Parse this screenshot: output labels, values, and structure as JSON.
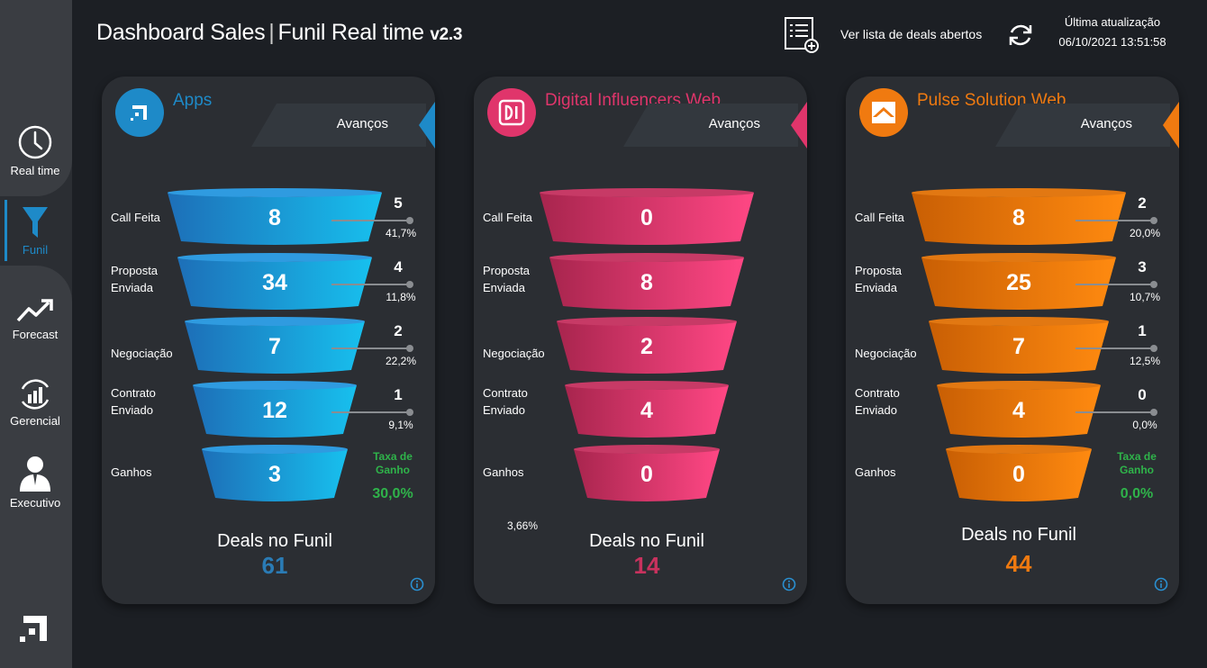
{
  "header": {
    "title_main": "Dashboard Sales",
    "title_sep": "|",
    "title_sub": "Funil Real time",
    "version": "v2.3",
    "list_link": "Ver lista de deals abertos",
    "last_update_label": "Última atualização",
    "last_update_value": "06/10/2021 13:51:58"
  },
  "sidebar": {
    "items": [
      {
        "label": "Real time",
        "icon": "clock-icon"
      },
      {
        "label": "Funil",
        "icon": "funnel-icon",
        "active": true
      },
      {
        "label": "Forecast",
        "icon": "trend-up-icon"
      },
      {
        "label": "Gerencial",
        "icon": "bar-chart-cycle-icon"
      },
      {
        "label": "Executivo",
        "icon": "person-icon"
      }
    ]
  },
  "stage_labels": {
    "call": "Call Feita",
    "proposta_1": "Proposta",
    "proposta_2": "Enviada",
    "negociacao": "Negociação",
    "contrato_1": "Contrato",
    "contrato_2": "Enviado",
    "ganhos": "Ganhos"
  },
  "card_common": {
    "avancos": "Avanços",
    "taxa_1": "Taxa de",
    "taxa_2": "Ganho",
    "deals_label": "Deals no Funil"
  },
  "cards": [
    {
      "name": "Apps",
      "accent": "#1e8ac8",
      "values": [
        "8",
        "34",
        "7",
        "12",
        "3"
      ],
      "advances": [
        "5",
        "4",
        "2",
        "1"
      ],
      "advance_pct": [
        "41,7%",
        "11,8%",
        "22,2%",
        "9,1%"
      ],
      "taxa_ganho": "30,0%",
      "deals": "61"
    },
    {
      "name": "Digital Influencers Web",
      "accent": "#e0356b",
      "values": [
        "0",
        "8",
        "2",
        "4",
        "0"
      ],
      "extra_pct": "3,66%",
      "deals": "14"
    },
    {
      "name": "Pulse Solution Web",
      "accent": "#f07a10",
      "values": [
        "8",
        "25",
        "7",
        "4",
        "0"
      ],
      "advances": [
        "2",
        "3",
        "1",
        "0"
      ],
      "advance_pct": [
        "20,0%",
        "10,7%",
        "12,5%",
        "0,0%"
      ],
      "taxa_ganho": "0,0%",
      "deals": "44"
    }
  ]
}
